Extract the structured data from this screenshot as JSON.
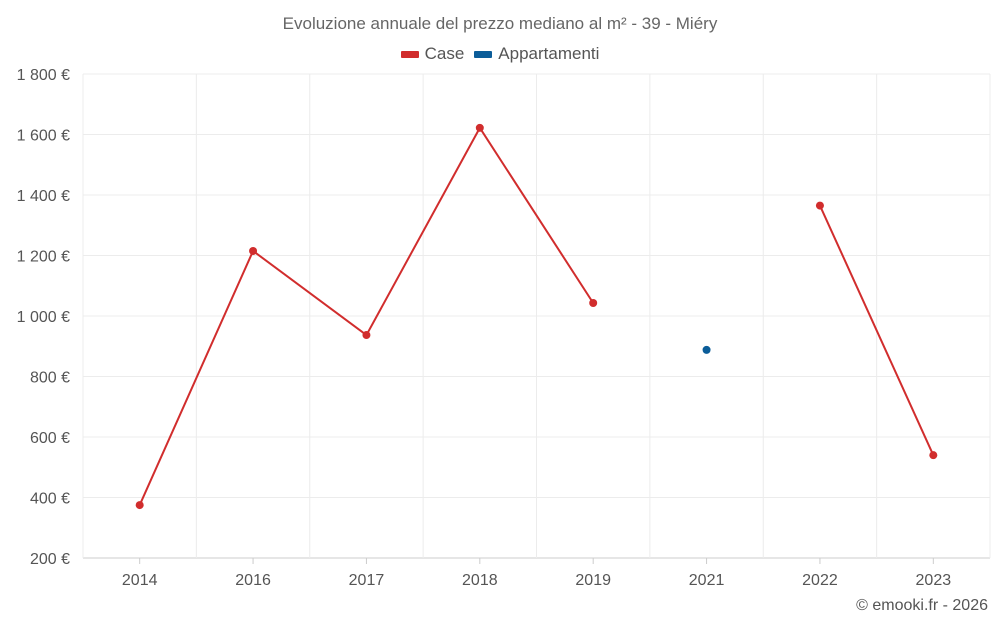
{
  "chart_data": {
    "type": "line",
    "title": "Evoluzione annuale del prezzo mediano al m² - 39 - Miéry",
    "categories": [
      "2014",
      "2016",
      "2017",
      "2018",
      "2019",
      "2021",
      "2022",
      "2023"
    ],
    "series": [
      {
        "name": "Case",
        "color": "#d12d2d",
        "values": [
          375,
          1215,
          937,
          1622,
          1043,
          null,
          1365,
          540
        ]
      },
      {
        "name": "Appartamenti",
        "color": "#0b5d99",
        "values": [
          null,
          null,
          null,
          null,
          null,
          888,
          null,
          null
        ]
      }
    ],
    "yticks": [
      "200 €",
      "400 €",
      "600 €",
      "800 €",
      "1 000 €",
      "1 200 €",
      "1 400 €",
      "1 600 €",
      "1 800 €"
    ],
    "ylim": [
      200,
      1800
    ],
    "grid": true,
    "legend_position": "top-center"
  },
  "credit": "© emooki.fr - 2026"
}
